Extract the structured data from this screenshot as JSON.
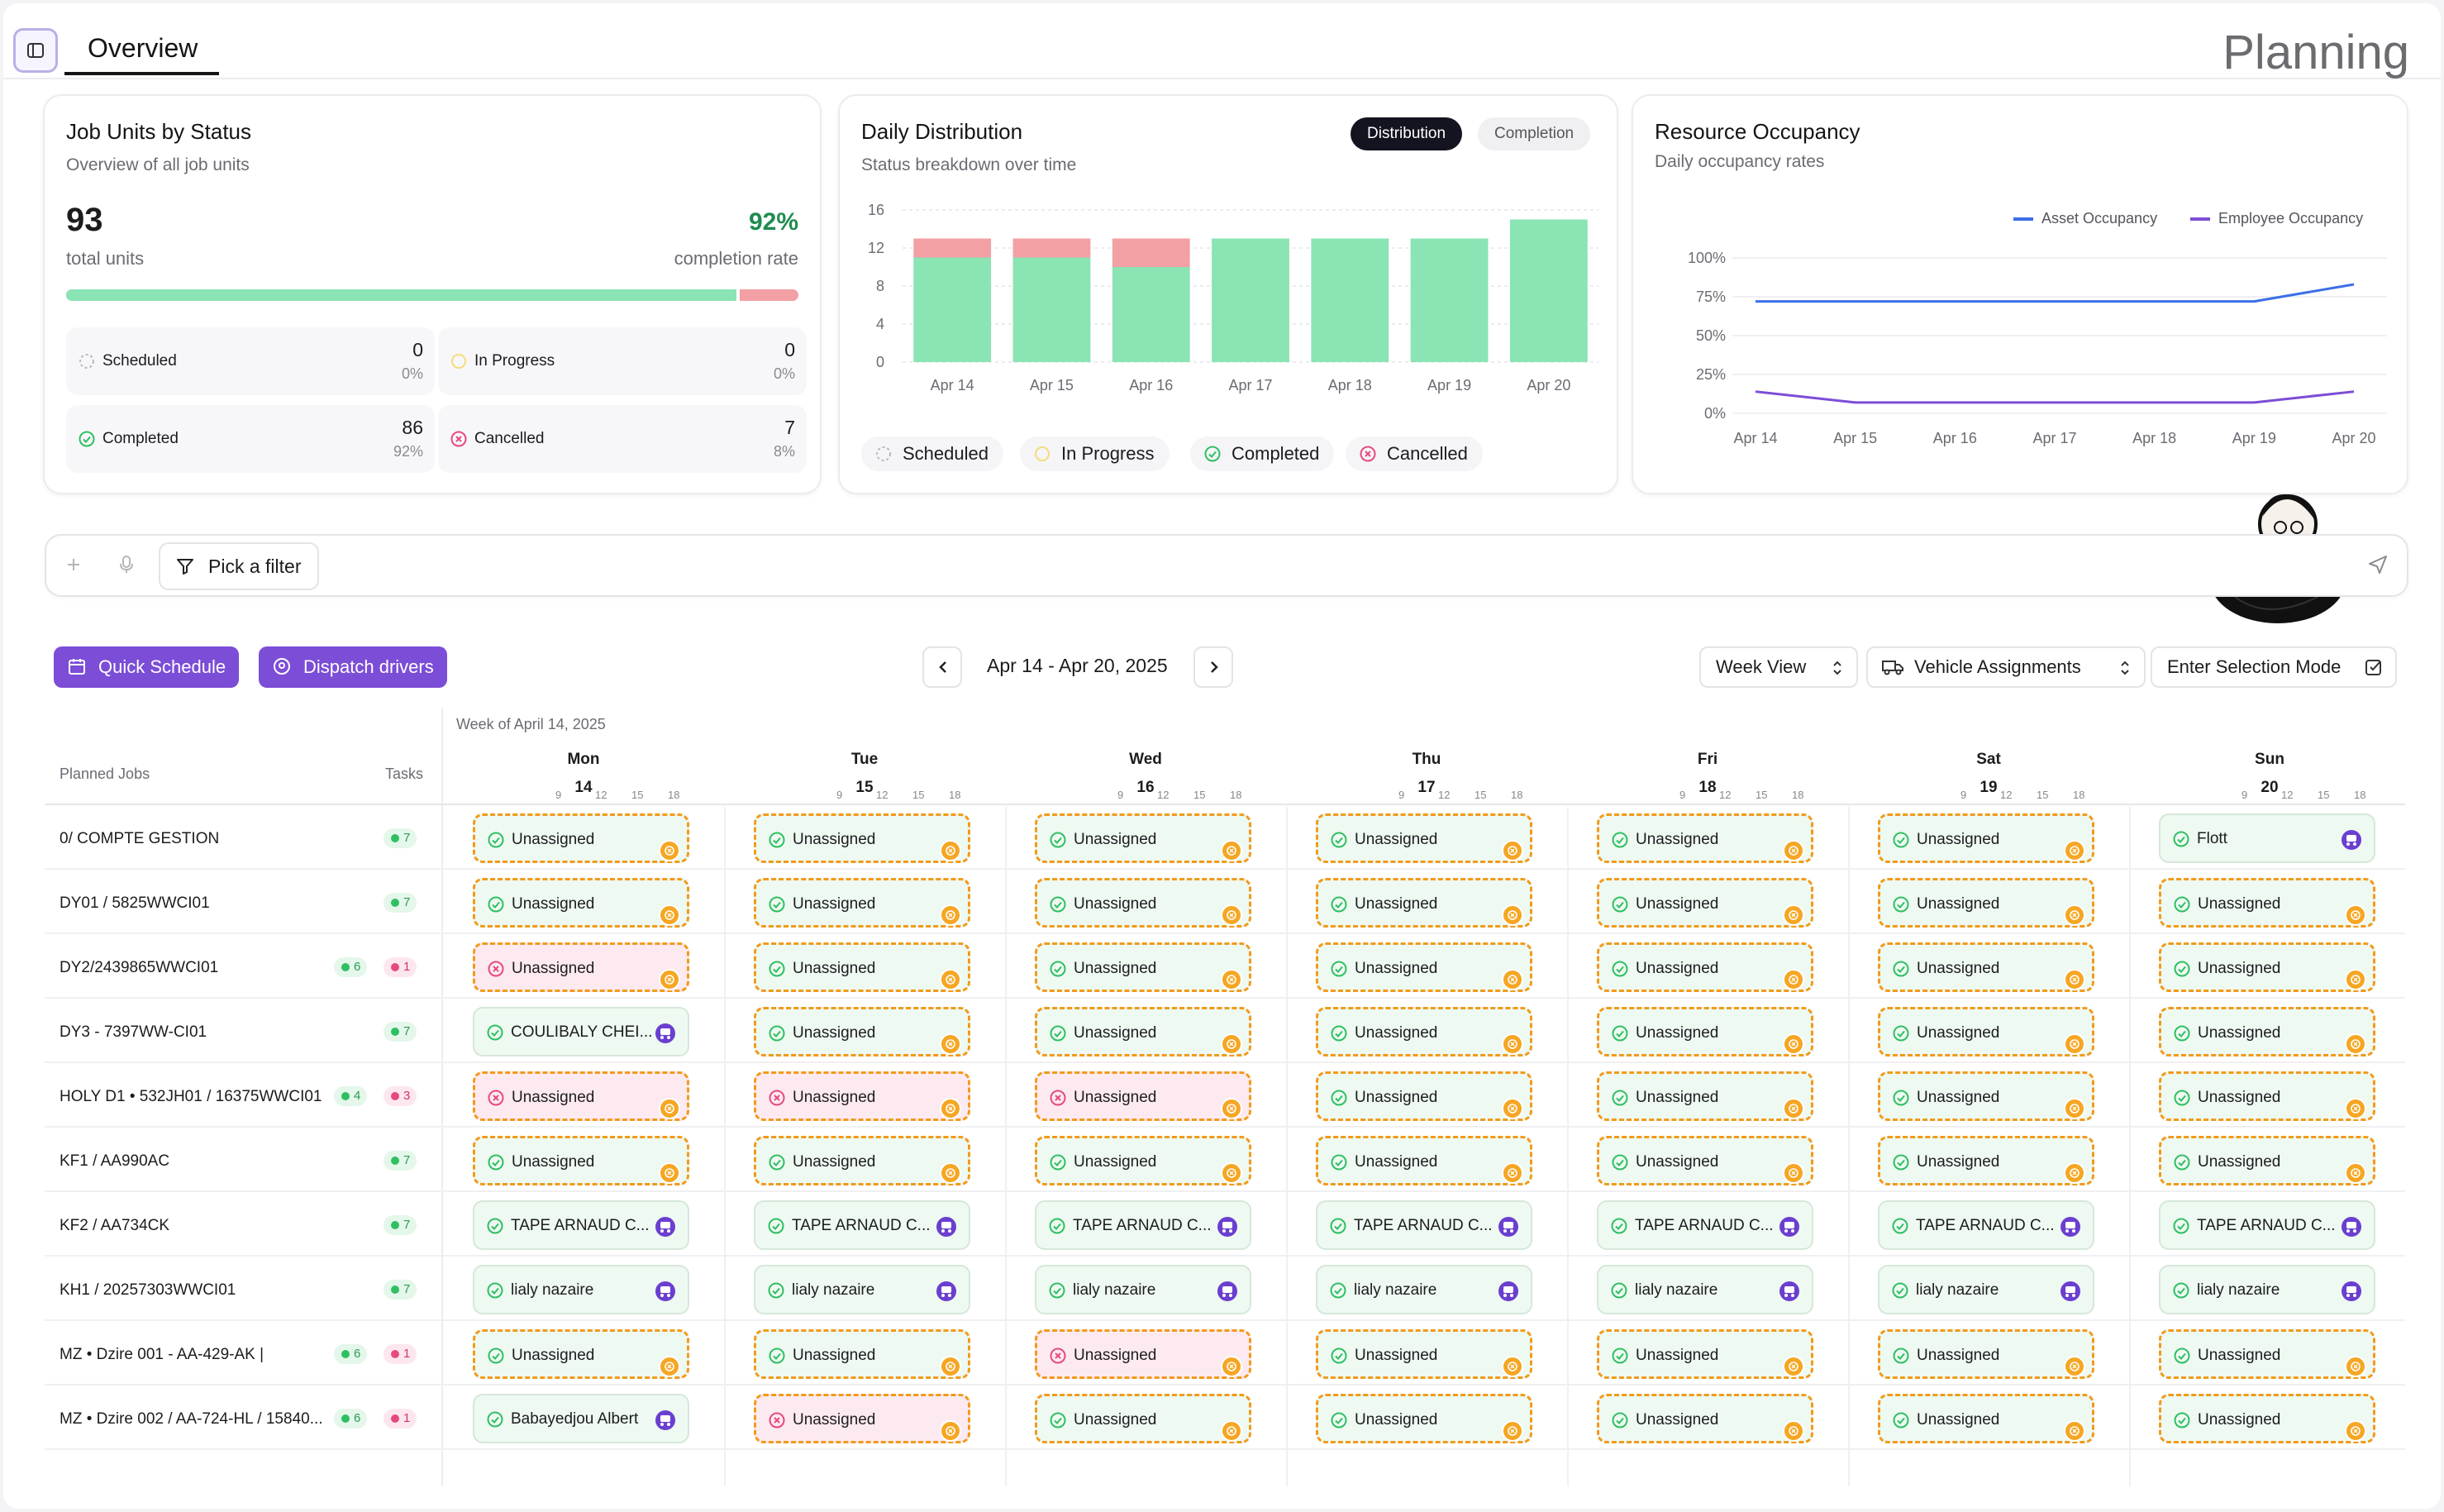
{
  "header": {
    "tab_overview": "Overview",
    "page_title": "Planning"
  },
  "job_units": {
    "title": "Job Units by Status",
    "subtitle": "Overview of all job units",
    "total": "93",
    "total_label": "total units",
    "completion_rate": "92%",
    "completion_label": "completion rate",
    "completion_fraction": 0.92,
    "stats": [
      {
        "label": "Scheduled",
        "value": "0",
        "pct": "0%"
      },
      {
        "label": "In Progress",
        "value": "0",
        "pct": "0%"
      },
      {
        "label": "Completed",
        "value": "86",
        "pct": "92%"
      },
      {
        "label": "Cancelled",
        "value": "7",
        "pct": "8%"
      }
    ]
  },
  "daily": {
    "title": "Daily Distribution",
    "subtitle": "Status breakdown over time",
    "toggle": [
      "Distribution",
      "Completion"
    ],
    "legend": [
      "Scheduled",
      "In Progress",
      "Completed",
      "Cancelled"
    ]
  },
  "resource": {
    "title": "Resource Occupancy",
    "subtitle": "Daily occupancy rates",
    "legend": [
      "Asset Occupancy",
      "Employee Occupancy"
    ]
  },
  "colors": {
    "completed": "#8ae4b4",
    "cancelled": "#f3a0a4",
    "asset": "#3b6fe8",
    "employee": "#7c4dd6",
    "accent": "#7c4dd6",
    "warning": "#f5a623"
  },
  "chart_data": [
    {
      "type": "bar",
      "title": "Daily Distribution",
      "categories": [
        "Apr 14",
        "Apr 15",
        "Apr 16",
        "Apr 17",
        "Apr 18",
        "Apr 19",
        "Apr 20"
      ],
      "series": [
        {
          "name": "Completed",
          "values": [
            11,
            11,
            10,
            13,
            13,
            13,
            15
          ]
        },
        {
          "name": "Cancelled",
          "values": [
            2,
            2,
            3,
            0,
            0,
            0,
            0
          ]
        }
      ],
      "yticks": [
        "0",
        "4",
        "8",
        "12",
        "16"
      ],
      "ylim": [
        0,
        16
      ],
      "stacked": true
    },
    {
      "type": "line",
      "title": "Resource Occupancy",
      "categories": [
        "Apr 14",
        "Apr 15",
        "Apr 16",
        "Apr 17",
        "Apr 18",
        "Apr 19",
        "Apr 20"
      ],
      "series": [
        {
          "name": "Asset Occupancy",
          "values": [
            72,
            72,
            72,
            72,
            72,
            72,
            83
          ]
        },
        {
          "name": "Employee Occupancy",
          "values": [
            14,
            7,
            7,
            7,
            7,
            7,
            14
          ]
        }
      ],
      "yticks": [
        "0%",
        "25%",
        "50%",
        "75%",
        "100%"
      ],
      "ylim": [
        0,
        100
      ]
    }
  ],
  "filter": {
    "pick_label": "Pick a filter"
  },
  "toolbar": {
    "quick_schedule": "Quick Schedule",
    "dispatch": "Dispatch drivers",
    "date_range": "Apr 14 - Apr 20, 2025",
    "week_view": "Week View",
    "vehicle": "Vehicle Assignments",
    "selection": "Enter Selection Mode"
  },
  "schedule": {
    "week_label": "Week of April 14, 2025",
    "col_planned": "Planned Jobs",
    "col_tasks": "Tasks",
    "tick_labels": [
      "9",
      "12",
      "15",
      "18"
    ],
    "days": [
      {
        "name": "Mon",
        "num": "14"
      },
      {
        "name": "Tue",
        "num": "15"
      },
      {
        "name": "Wed",
        "num": "16"
      },
      {
        "name": "Thu",
        "num": "17"
      },
      {
        "name": "Fri",
        "num": "18"
      },
      {
        "name": "Sat",
        "num": "19"
      },
      {
        "name": "Sun",
        "num": "20"
      }
    ],
    "rows": [
      {
        "label": "0/ COMPTE GESTION",
        "green": "7",
        "red": "",
        "cells": [
          [
            "Unassigned",
            "u"
          ],
          [
            "Unassigned",
            "u"
          ],
          [
            "Unassigned",
            "u"
          ],
          [
            "Unassigned",
            "u"
          ],
          [
            "Unassigned",
            "u"
          ],
          [
            "Unassigned",
            "u"
          ],
          [
            "Flott",
            "a"
          ]
        ]
      },
      {
        "label": "DY01 / 5825WWCI01",
        "green": "7",
        "red": "",
        "cells": [
          [
            "Unassigned",
            "u"
          ],
          [
            "Unassigned",
            "u"
          ],
          [
            "Unassigned",
            "u"
          ],
          [
            "Unassigned",
            "u"
          ],
          [
            "Unassigned",
            "u"
          ],
          [
            "Unassigned",
            "u"
          ],
          [
            "Unassigned",
            "u"
          ]
        ]
      },
      {
        "label": "DY2/2439865WWCI01",
        "green": "6",
        "red": "1",
        "cells": [
          [
            "Unassigned",
            "x"
          ],
          [
            "Unassigned",
            "u"
          ],
          [
            "Unassigned",
            "u"
          ],
          [
            "Unassigned",
            "u"
          ],
          [
            "Unassigned",
            "u"
          ],
          [
            "Unassigned",
            "u"
          ],
          [
            "Unassigned",
            "u"
          ]
        ]
      },
      {
        "label": "DY3 - 7397WW-CI01",
        "green": "7",
        "red": "",
        "cells": [
          [
            "COULIBALY CHEI...",
            "a"
          ],
          [
            "Unassigned",
            "u"
          ],
          [
            "Unassigned",
            "u"
          ],
          [
            "Unassigned",
            "u"
          ],
          [
            "Unassigned",
            "u"
          ],
          [
            "Unassigned",
            "u"
          ],
          [
            "Unassigned",
            "u"
          ]
        ]
      },
      {
        "label": "HOLY D1 • 532JH01 / 16375WWCI01",
        "green": "4",
        "red": "3",
        "cells": [
          [
            "Unassigned",
            "x"
          ],
          [
            "Unassigned",
            "x"
          ],
          [
            "Unassigned",
            "x"
          ],
          [
            "Unassigned",
            "u"
          ],
          [
            "Unassigned",
            "u"
          ],
          [
            "Unassigned",
            "u"
          ],
          [
            "Unassigned",
            "u"
          ]
        ]
      },
      {
        "label": "KF1 / AA990AC",
        "green": "7",
        "red": "",
        "cells": [
          [
            "Unassigned",
            "u"
          ],
          [
            "Unassigned",
            "u"
          ],
          [
            "Unassigned",
            "u"
          ],
          [
            "Unassigned",
            "u"
          ],
          [
            "Unassigned",
            "u"
          ],
          [
            "Unassigned",
            "u"
          ],
          [
            "Unassigned",
            "u"
          ]
        ]
      },
      {
        "label": "KF2 / AA734CK",
        "green": "7",
        "red": "",
        "cells": [
          [
            "TAPE ARNAUD C...",
            "a"
          ],
          [
            "TAPE ARNAUD C...",
            "a"
          ],
          [
            "TAPE ARNAUD C...",
            "a"
          ],
          [
            "TAPE ARNAUD C...",
            "a"
          ],
          [
            "TAPE ARNAUD C...",
            "a"
          ],
          [
            "TAPE ARNAUD C...",
            "a"
          ],
          [
            "TAPE ARNAUD C...",
            "a"
          ]
        ]
      },
      {
        "label": "KH1 / 20257303WWCI01",
        "green": "7",
        "red": "",
        "cells": [
          [
            "lialy nazaire",
            "a"
          ],
          [
            "lialy nazaire",
            "a"
          ],
          [
            "lialy nazaire",
            "a"
          ],
          [
            "lialy nazaire",
            "a"
          ],
          [
            "lialy nazaire",
            "a"
          ],
          [
            "lialy nazaire",
            "a"
          ],
          [
            "lialy nazaire",
            "a"
          ]
        ]
      },
      {
        "label": "MZ • Dzire 001 - AA-429-AK |",
        "green": "6",
        "red": "1",
        "cells": [
          [
            "Unassigned",
            "u"
          ],
          [
            "Unassigned",
            "u"
          ],
          [
            "Unassigned",
            "x"
          ],
          [
            "Unassigned",
            "u"
          ],
          [
            "Unassigned",
            "u"
          ],
          [
            "Unassigned",
            "u"
          ],
          [
            "Unassigned",
            "u"
          ]
        ]
      },
      {
        "label": "MZ • Dzire 002 / AA-724-HL / 15840...",
        "green": "6",
        "red": "1",
        "cells": [
          [
            "Babayedjou Albert",
            "a"
          ],
          [
            "Unassigned",
            "x"
          ],
          [
            "Unassigned",
            "u"
          ],
          [
            "Unassigned",
            "u"
          ],
          [
            "Unassigned",
            "u"
          ],
          [
            "Unassigned",
            "u"
          ],
          [
            "Unassigned",
            "u"
          ]
        ]
      }
    ]
  }
}
